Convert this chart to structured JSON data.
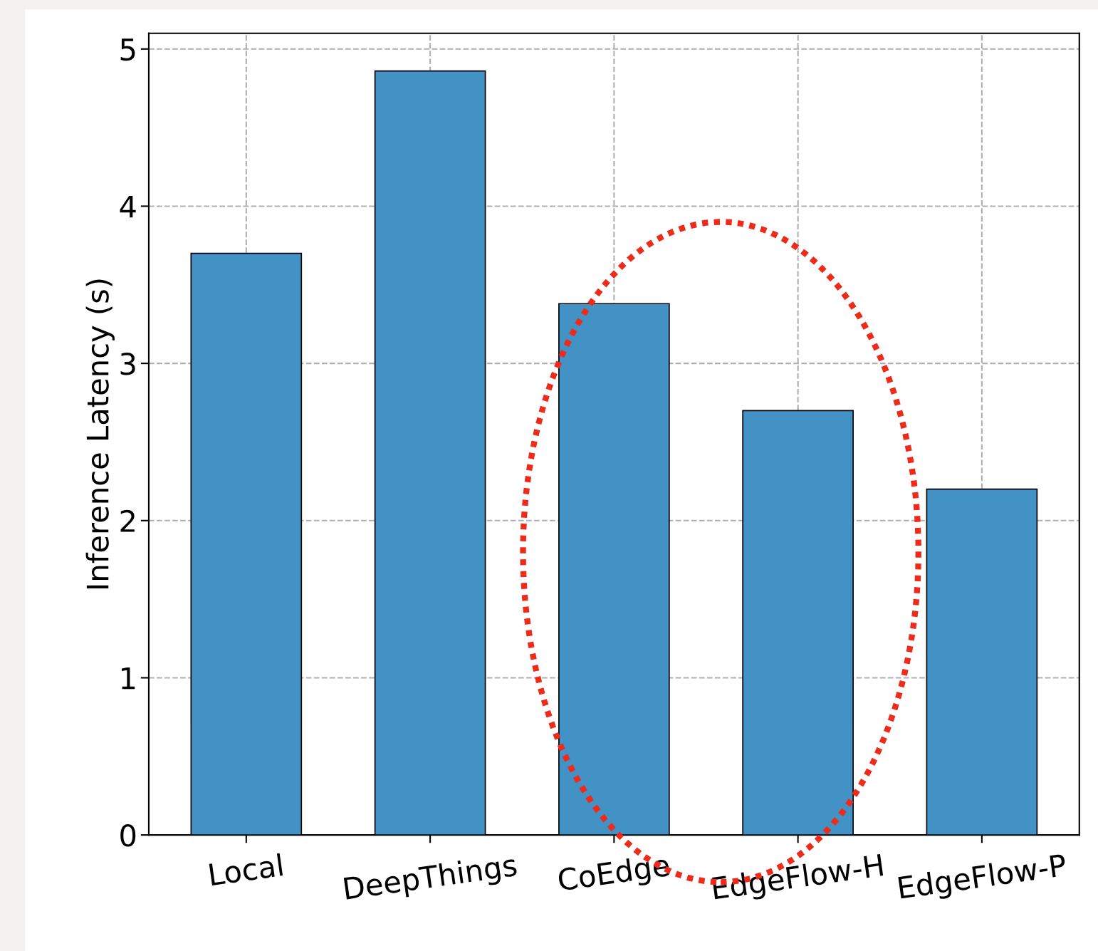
{
  "chart_data": {
    "type": "bar",
    "ylabel": "Inference Latency (s)",
    "categories": [
      "Local",
      "DeepThings",
      "CoEdge",
      "EdgeFlow-H",
      "EdgeFlow-P"
    ],
    "values": [
      3.7,
      4.86,
      3.38,
      2.7,
      2.2
    ],
    "color": "#4292c6",
    "ylim": [
      0,
      5.1
    ],
    "yticks": [
      0,
      1,
      2,
      3,
      4,
      5
    ],
    "grid": true
  }
}
